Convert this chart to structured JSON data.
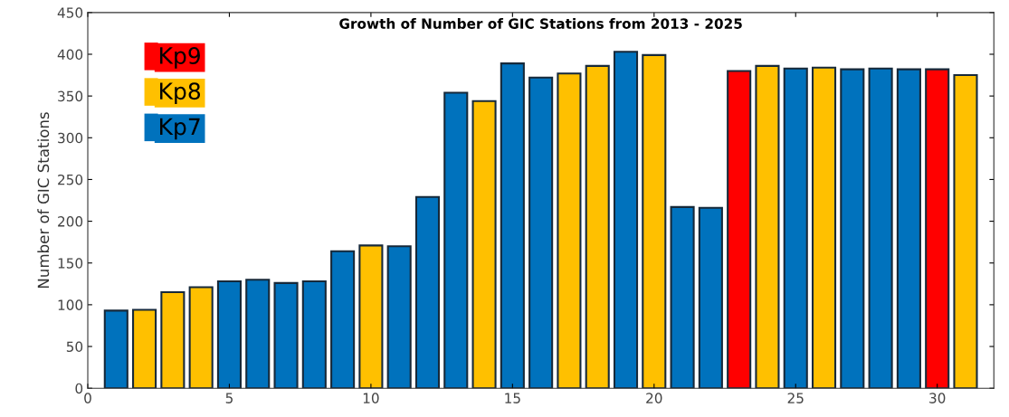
{
  "chart_data": {
    "type": "bar",
    "title": "Growth of Number of GIC Stations from 2013 - 2025",
    "ylabel": "Number of GIC Stations",
    "x": [
      1,
      2,
      3,
      4,
      5,
      6,
      7,
      8,
      9,
      10,
      11,
      12,
      13,
      14,
      15,
      16,
      17,
      18,
      19,
      20,
      21,
      22,
      23,
      24,
      25,
      26,
      27,
      28,
      29,
      30,
      31
    ],
    "series": [
      {
        "name": "Kp7",
        "color": "#0072bd",
        "values": [
          93,
          null,
          null,
          null,
          128,
          130,
          126,
          128,
          164,
          null,
          170,
          229,
          354,
          null,
          389,
          372,
          null,
          null,
          403,
          null,
          217,
          216,
          null,
          null,
          383,
          null,
          382,
          383,
          382,
          null,
          null
        ]
      },
      {
        "name": "Kp8",
        "color": "#ffc000",
        "values": [
          null,
          94,
          115,
          121,
          null,
          null,
          null,
          null,
          null,
          171,
          null,
          null,
          null,
          344,
          null,
          null,
          377,
          386,
          null,
          399,
          null,
          null,
          null,
          386,
          null,
          384,
          null,
          null,
          null,
          null,
          375
        ]
      },
      {
        "name": "Kp9",
        "color": "#ff0000",
        "values": [
          null,
          null,
          null,
          null,
          null,
          null,
          null,
          null,
          null,
          null,
          null,
          null,
          null,
          null,
          null,
          null,
          null,
          null,
          null,
          null,
          null,
          null,
          380,
          null,
          null,
          null,
          null,
          null,
          null,
          382,
          null
        ]
      }
    ],
    "xlim": [
      0,
      32
    ],
    "xticks": [
      0,
      5,
      10,
      15,
      20,
      25,
      30
    ],
    "ylim": [
      0,
      450
    ],
    "yticks": [
      0,
      50,
      100,
      150,
      200,
      250,
      300,
      350,
      400,
      450
    ],
    "grid": false,
    "legend": "top left"
  }
}
